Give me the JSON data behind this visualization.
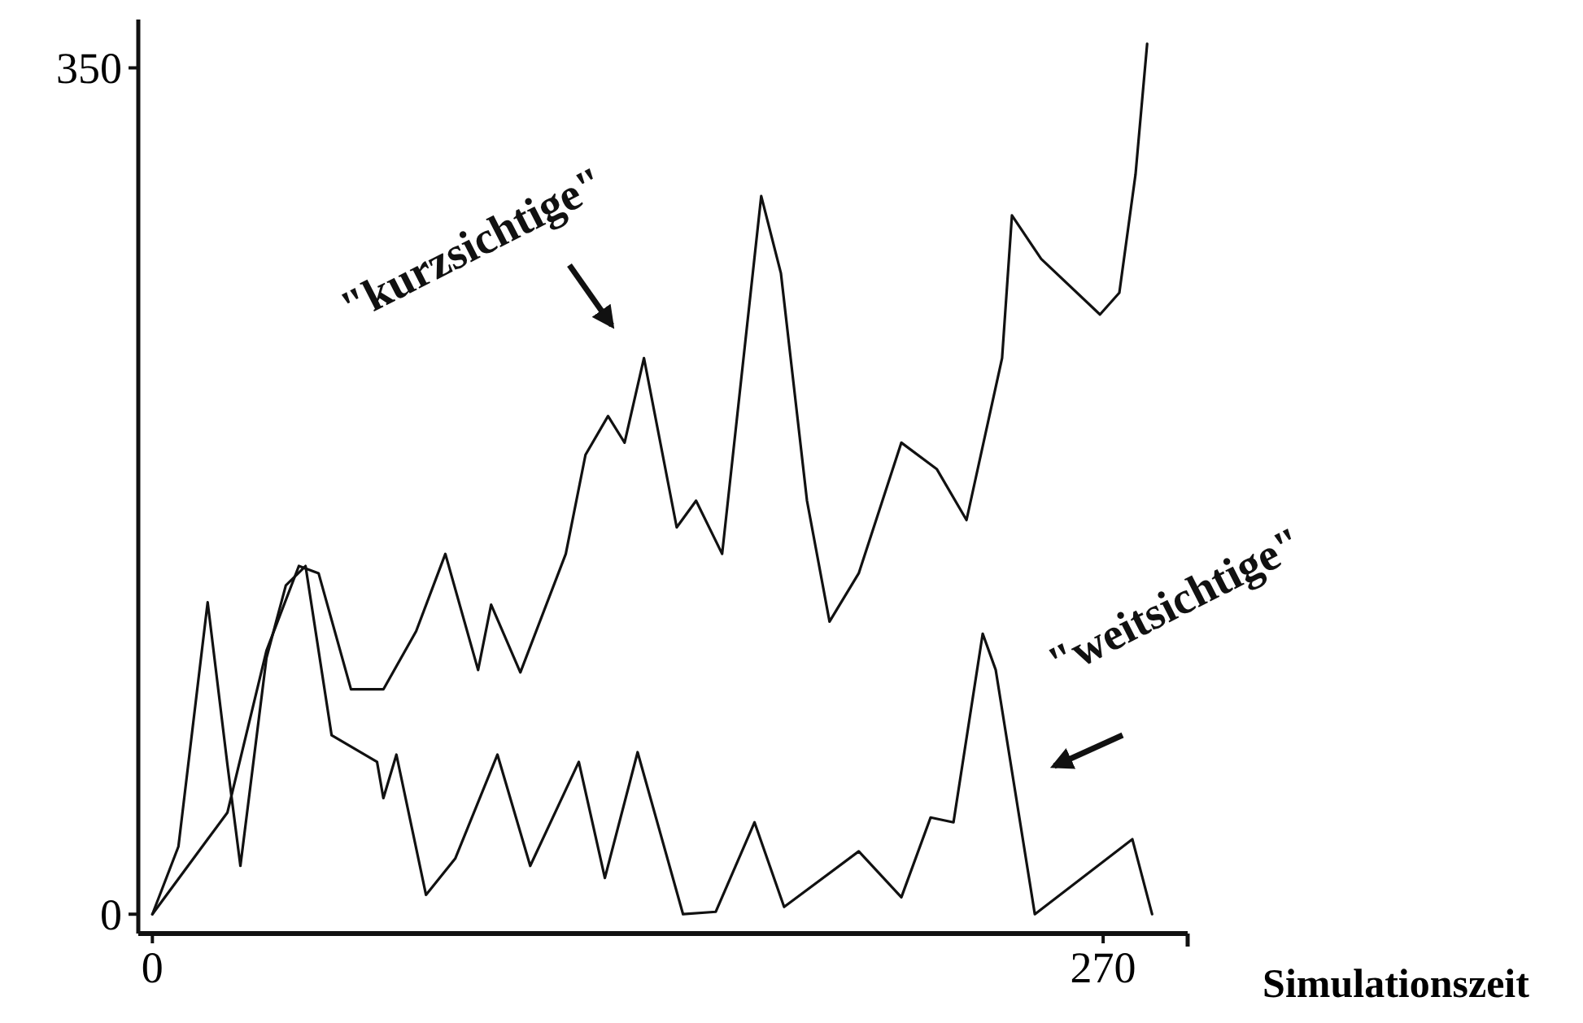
{
  "chart_data": {
    "type": "line",
    "xlabel": "Simulationszeit",
    "xlim": [
      -4,
      294
    ],
    "ylim": [
      -8,
      370
    ],
    "xticks": [
      0,
      270
    ],
    "yticks": [
      0,
      350
    ],
    "grid": false,
    "marker": "none",
    "line_style": "solid",
    "series": [
      {
        "name": "\"kurzsichtige\"",
        "color": "#111111",
        "x": [
          0,
          15.7,
          21.3,
          32.4,
          41.6,
          47.2,
          56.4,
          65.6,
          74.9,
          83.2,
          92.5,
          96.2,
          104.5,
          117.4,
          123,
          129.4,
          134.1,
          139.6,
          148.9,
          154.4,
          161.8,
          172.9,
          178.5,
          185.9,
          192.3,
          200.6,
          212.7,
          222.8,
          231.2,
          241.3,
          244.1,
          252.4,
          269.1,
          274.6,
          279.2,
          282.5
        ],
        "values": [
          0,
          31,
          42,
          109,
          144,
          141,
          93,
          93,
          117,
          149,
          101,
          128,
          100,
          149,
          190,
          206,
          195,
          230,
          160,
          171,
          149,
          297,
          265,
          171,
          121,
          141,
          195,
          184,
          163,
          230,
          289,
          271,
          248,
          257,
          306,
          360
        ]
      },
      {
        "name": "\"weitsichtige\"",
        "color": "#111111",
        "x": [
          0,
          7.4,
          15.7,
          21.3,
          25,
          32.4,
          37.9,
          43.5,
          50.9,
          63.8,
          65.6,
          69.3,
          77.7,
          86,
          98,
          107.3,
          121.1,
          128.5,
          137.8,
          150.7,
          160,
          171,
          179.4,
          200.6,
          212.7,
          221,
          227.5,
          235.8,
          239.5,
          250.6,
          278.3,
          283.9
        ],
        "values": [
          0,
          28,
          129,
          62,
          20,
          106,
          136,
          144,
          74,
          63,
          48,
          66,
          8,
          23,
          66,
          20,
          63,
          15,
          67,
          0,
          1,
          38,
          3,
          26,
          7,
          40,
          38,
          116,
          101,
          0,
          31,
          0
        ]
      }
    ]
  }
}
